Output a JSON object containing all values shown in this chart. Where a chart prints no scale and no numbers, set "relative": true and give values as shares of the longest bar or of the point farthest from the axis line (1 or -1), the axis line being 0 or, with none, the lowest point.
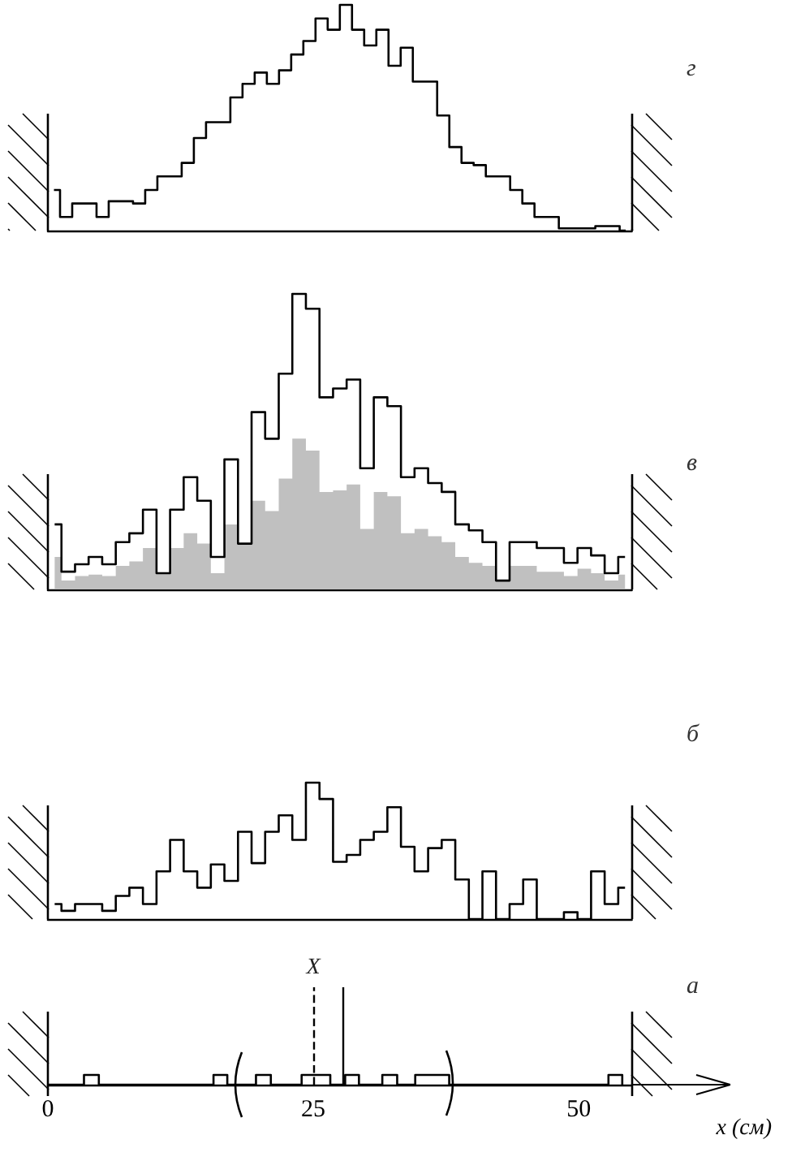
{
  "chart_data": [
    {
      "type": "step",
      "annotations": [
        "г"
      ],
      "relative": true,
      "categories": [
        null,
        null,
        null,
        null,
        null,
        null,
        null,
        null,
        null,
        null,
        null,
        null,
        null,
        null,
        null,
        null,
        null,
        null,
        null,
        null,
        null,
        null,
        null,
        null,
        null,
        null,
        null,
        null,
        null,
        null,
        null,
        null,
        null,
        null,
        null,
        null,
        null,
        null,
        null,
        null,
        null,
        null,
        null,
        null,
        null,
        null,
        null,
        null
      ],
      "series": [
        {
          "color": "#000000",
          "values": [
            0.18,
            0.06,
            0.12,
            0.12,
            0.06,
            0.13,
            0.13,
            0.12,
            0.18,
            0.24,
            0.24,
            0.3,
            0.41,
            0.48,
            0.48,
            0.59,
            0.65,
            0.7,
            0.65,
            0.71,
            0.78,
            0.84,
            0.94,
            0.89,
            1,
            0.89,
            0.82,
            0.89,
            0.73,
            0.81,
            0.66,
            0.66,
            0.51,
            0.37,
            0.3,
            0.29,
            0.24,
            0.24,
            0.18,
            0.12,
            0.06,
            0.06,
            0.01,
            0.01,
            0.01,
            0.02,
            0.02,
            0
          ]
        }
      ]
    },
    {
      "type": "step",
      "annotations": [
        "в"
      ],
      "relative": true,
      "categories": [
        null,
        null,
        null,
        null,
        null,
        null,
        null,
        null,
        null,
        null,
        null,
        null,
        null,
        null,
        null,
        null,
        null,
        null,
        null,
        null,
        null,
        null,
        null,
        null,
        null,
        null,
        null,
        null,
        null,
        null,
        null,
        null,
        null,
        null,
        null,
        null,
        null,
        null,
        null,
        null,
        null,
        null,
        null
      ],
      "series": [
        {
          "type": "area",
          "color": "#c0c0c0",
          "values": [
            0.11,
            0.03,
            0.045,
            0.05,
            0.045,
            0.08,
            0.095,
            0.14,
            0.055,
            0.14,
            0.19,
            0.155,
            0.055,
            0.22,
            0.155,
            0.3,
            0.265,
            0.375,
            0.51,
            0.47,
            0.33,
            0.335,
            0.355,
            0.205,
            0.33,
            0.315,
            0.19,
            0.205,
            0.18,
            0.16,
            0.11,
            0.09,
            0.08,
            0.03,
            0.08,
            0.08,
            0.06,
            0.06,
            0.045,
            0.07,
            0.055,
            0.03,
            0.05
          ]
        },
        {
          "color": "#000000",
          "values": [
            0.22,
            0.06,
            0.085,
            0.11,
            0.085,
            0.16,
            0.19,
            0.27,
            0.055,
            0.27,
            0.38,
            0.3,
            0.11,
            0.44,
            0.155,
            0.6,
            0.51,
            0.73,
            1,
            0.95,
            0.65,
            0.68,
            0.71,
            0.41,
            0.65,
            0.62,
            0.38,
            0.41,
            0.36,
            0.33,
            0.22,
            0.2,
            0.16,
            0.03,
            0.16,
            0.16,
            0.14,
            0.14,
            0.09,
            0.14,
            0.115,
            0.055,
            0.11
          ]
        }
      ]
    },
    {
      "type": "step",
      "annotations": [
        "б"
      ],
      "relative": true,
      "categories": [
        null,
        null,
        null,
        null,
        null,
        null,
        null,
        null,
        null,
        null,
        null,
        null,
        null,
        null,
        null,
        null,
        null,
        null,
        null,
        null,
        null,
        null,
        null,
        null,
        null,
        null,
        null,
        null,
        null,
        null,
        null,
        null,
        null,
        null,
        null,
        null,
        null,
        null,
        null,
        null,
        null,
        null,
        null
      ],
      "series": [
        {
          "color": "#000000",
          "values": [
            0.11,
            0.06,
            0.11,
            0.11,
            0.06,
            0.17,
            0.23,
            0.11,
            0.35,
            0.58,
            0.35,
            0.23,
            0.4,
            0.28,
            0.64,
            0.41,
            0.64,
            0.76,
            0.58,
            1,
            0.88,
            0.42,
            0.47,
            0.58,
            0.64,
            0.82,
            0.53,
            0.35,
            0.52,
            0.58,
            0.29,
            0,
            0.35,
            0,
            0.11,
            0.29,
            0,
            0,
            0.05,
            0,
            0.35,
            0.11,
            0.23
          ]
        }
      ]
    },
    {
      "type": "step",
      "annotations": [
        "а"
      ],
      "relative": true,
      "xlim": [
        0,
        55
      ],
      "xticks": [
        0,
        25,
        50
      ],
      "xlabel": "x (см)",
      "x": [
        0,
        3.4,
        4.8,
        15.6,
        16.9,
        19.6,
        21.0,
        23.9,
        25.2,
        26.6,
        28.0,
        29.3,
        31.5,
        32.9,
        34.6,
        36.2,
        37.8,
        52.8,
        54.1
      ],
      "series": [
        {
          "color": "#000000",
          "values": [
            0,
            1,
            0,
            1,
            0,
            1,
            0,
            1,
            1,
            0,
            1,
            0,
            1,
            0,
            1,
            1,
            0,
            1,
            0
          ]
        }
      ],
      "ref_lines": [
        {
          "axis": "x",
          "value": 25,
          "label": "X",
          "line_style": "dashed"
        },
        {
          "axis": "x",
          "value": 27.8,
          "line_style": "solid"
        }
      ]
    }
  ]
}
